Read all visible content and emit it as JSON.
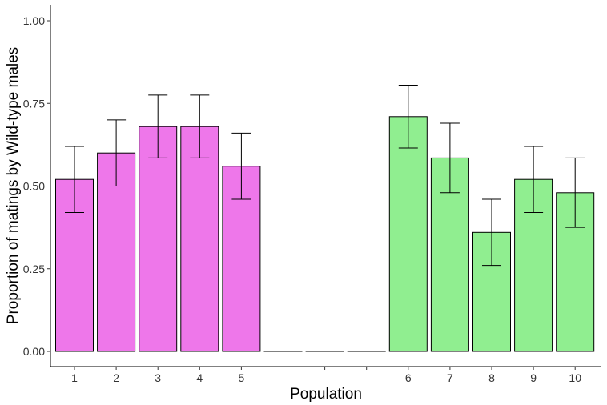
{
  "chart_data": {
    "type": "bar",
    "xlabel": "Population",
    "ylabel": "Proportion of matings by Wild-type males",
    "ylim": [
      0,
      1
    ],
    "yticks": [
      "0.00",
      "0.25",
      "0.50",
      "0.75",
      "1.00"
    ],
    "grid": false,
    "legend": "none",
    "categories": [
      "1",
      "2",
      "3",
      "4",
      "5",
      "",
      "",
      "",
      "6",
      "7",
      "8",
      "9",
      "10"
    ],
    "values": [
      0.52,
      0.6,
      0.68,
      0.68,
      0.56,
      0,
      0,
      0,
      0.71,
      0.585,
      0.36,
      0.52,
      0.48
    ],
    "error_low": [
      0.42,
      0.5,
      0.585,
      0.585,
      0.46,
      0,
      0,
      0,
      0.615,
      0.48,
      0.26,
      0.42,
      0.375
    ],
    "error_high": [
      0.62,
      0.7,
      0.775,
      0.775,
      0.66,
      0,
      0,
      0,
      0.805,
      0.69,
      0.46,
      0.62,
      0.585
    ],
    "colors": [
      "#EE77EA",
      "#EE77EA",
      "#EE77EA",
      "#EE77EA",
      "#EE77EA",
      "#EE77EA",
      "#EE77EA",
      "#90EE90",
      "#90EE90",
      "#90EE90",
      "#90EE90",
      "#90EE90",
      "#90EE90"
    ]
  }
}
